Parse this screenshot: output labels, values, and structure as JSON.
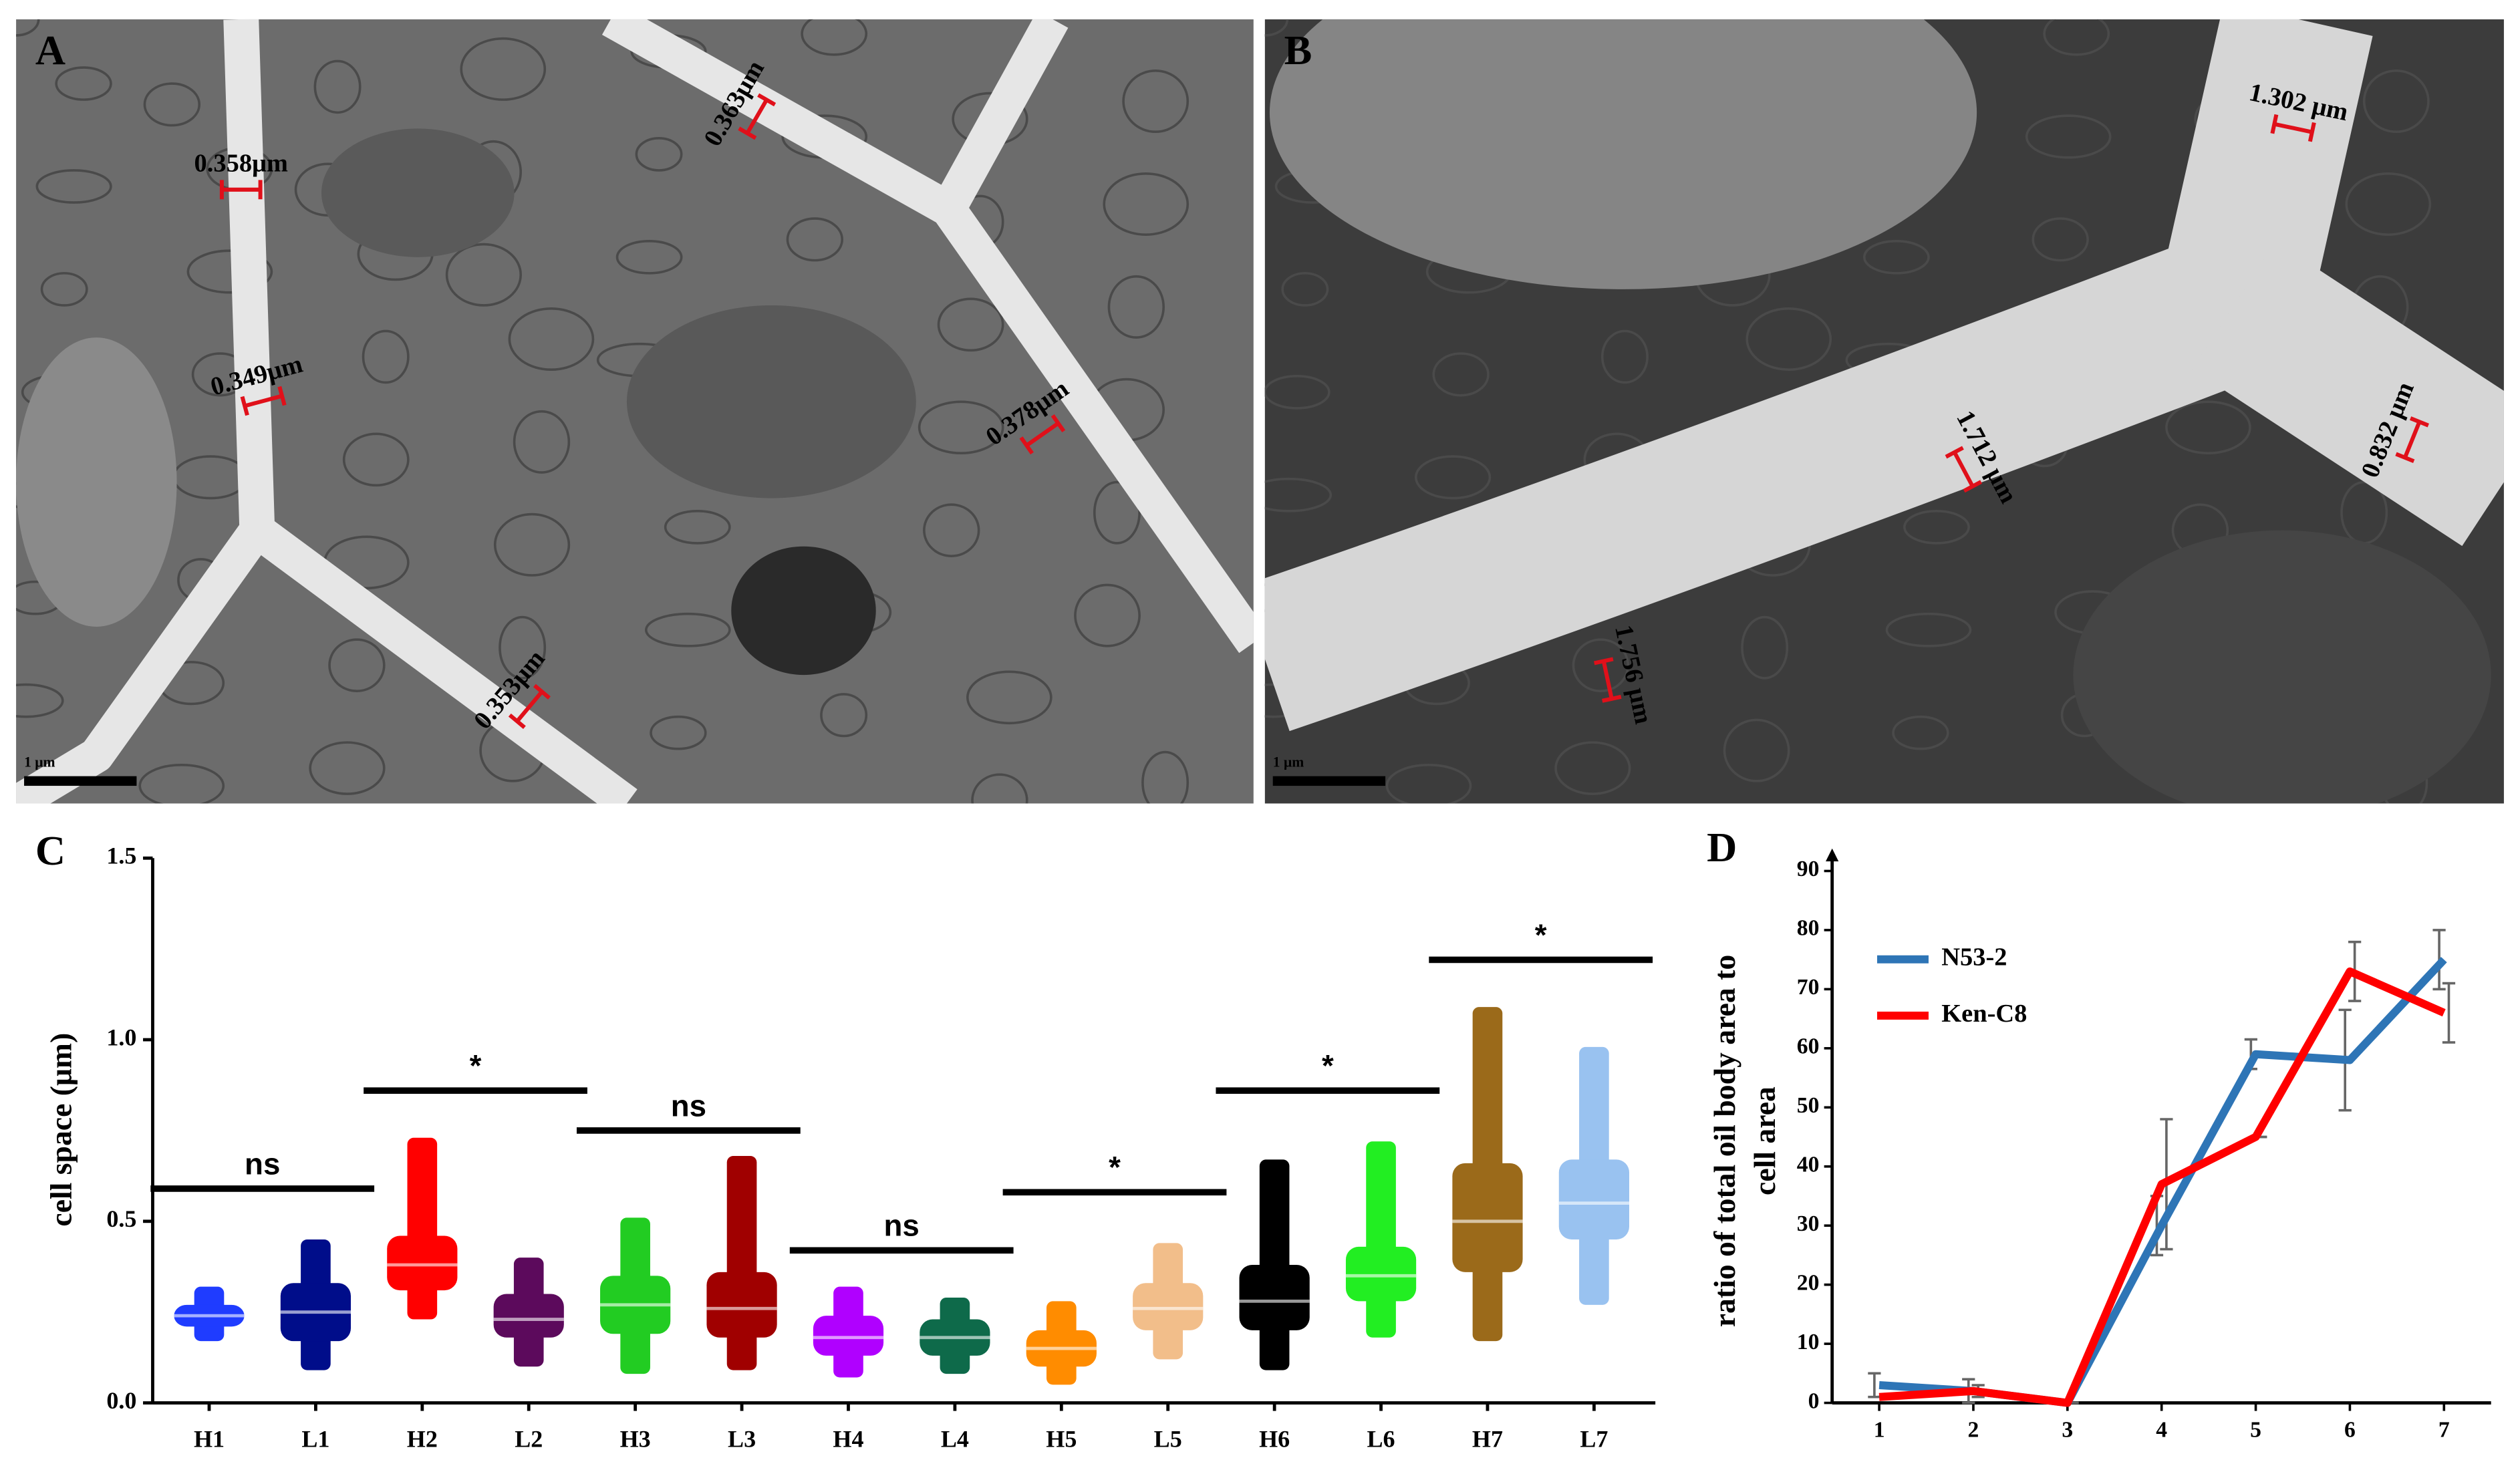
{
  "panels": [
    {
      "label": "A",
      "scale_bar": "1 μm",
      "measurements": [
        "0.358μm",
        "0.363μm",
        "0.349μm",
        "0.378μm",
        "0.353μm"
      ]
    },
    {
      "label": "B",
      "scale_bar": "1 μm",
      "measurements": [
        "1.302 μm",
        "1.712 μm",
        "0.832 μm",
        "1.756 μm"
      ]
    }
  ],
  "chart_data": [
    {
      "type": "box",
      "panel_label": "C",
      "y_label": "cell space (μm)",
      "categories": [
        "H1",
        "L1",
        "H2",
        "L2",
        "H3",
        "L3",
        "H4",
        "L4",
        "H5",
        "L5",
        "H6",
        "L6",
        "H7",
        "L7"
      ],
      "colors": [
        "#1f3cff",
        "#000d8a",
        "#ff0000",
        "#5c0a5c",
        "#22cc22",
        "#a00000",
        "#b000ff",
        "#0e6a4a",
        "#ff8c00",
        "#f2be8a",
        "#000000",
        "#22ee22",
        "#9b6a1a",
        "#99c2f0"
      ],
      "min": [
        0.17,
        0.09,
        0.23,
        0.1,
        0.08,
        0.09,
        0.07,
        0.08,
        0.05,
        0.12,
        0.09,
        0.18,
        0.17,
        0.27
      ],
      "q1": [
        0.21,
        0.17,
        0.31,
        0.18,
        0.19,
        0.18,
        0.13,
        0.13,
        0.1,
        0.2,
        0.2,
        0.28,
        0.36,
        0.45
      ],
      "median": [
        0.24,
        0.25,
        0.38,
        0.23,
        0.27,
        0.26,
        0.18,
        0.18,
        0.15,
        0.26,
        0.28,
        0.35,
        0.5,
        0.55
      ],
      "q3": [
        0.27,
        0.33,
        0.46,
        0.3,
        0.35,
        0.36,
        0.24,
        0.23,
        0.2,
        0.33,
        0.38,
        0.43,
        0.66,
        0.67
      ],
      "max": [
        0.32,
        0.45,
        0.73,
        0.4,
        0.51,
        0.68,
        0.32,
        0.29,
        0.28,
        0.44,
        0.67,
        0.72,
        1.09,
        0.98
      ],
      "ylim": [
        0,
        1.5
      ],
      "yticks": [
        {
          "value": 0,
          "label": "0.0"
        },
        0.5,
        {
          "value": 1,
          "label": "1.0"
        },
        1.5
      ],
      "annotations": [
        {
          "text": "ns",
          "from": "H1",
          "to": "L1",
          "y": 0.59
        },
        {
          "text": "*",
          "from": "H2",
          "to": "L2",
          "y": 0.86
        },
        {
          "text": "ns",
          "from": "H3",
          "to": "L3",
          "y": 0.75
        },
        {
          "text": "ns",
          "from": "H4",
          "to": "L4",
          "y": 0.42
        },
        {
          "text": "*",
          "from": "H5",
          "to": "L5",
          "y": 0.58
        },
        {
          "text": "*",
          "from": "H6",
          "to": "L6",
          "y": 0.86
        },
        {
          "text": "*",
          "from": "H7",
          "to": "L7",
          "y": 1.22
        }
      ]
    },
    {
      "type": "line",
      "panel_label": "D",
      "y_label": [
        "ratio of total oil body area to",
        "cell area"
      ],
      "x": [
        1,
        2,
        3,
        4,
        5,
        6,
        7
      ],
      "xlim": [
        0.5,
        7.5
      ],
      "xticks": [
        1,
        2,
        3,
        4,
        5,
        6,
        7
      ],
      "ylim": [
        0,
        90
      ],
      "yticks": [
        0,
        10,
        20,
        30,
        40,
        50,
        60,
        70,
        80,
        90
      ],
      "legend": "upper left",
      "series": [
        {
          "name": "N53-2",
          "color": "#2e75b6",
          "values": [
            3,
            2,
            0,
            30,
            59,
            58,
            75
          ],
          "errors": [
            2,
            2,
            0,
            5,
            2.5,
            8.5,
            5
          ]
        },
        {
          "name": "Ken-C8",
          "color": "#ff0000",
          "values": [
            1,
            2,
            0,
            37,
            45,
            73,
            66
          ],
          "errors": [
            0,
            1,
            0,
            11,
            0,
            5,
            5
          ]
        }
      ]
    }
  ]
}
